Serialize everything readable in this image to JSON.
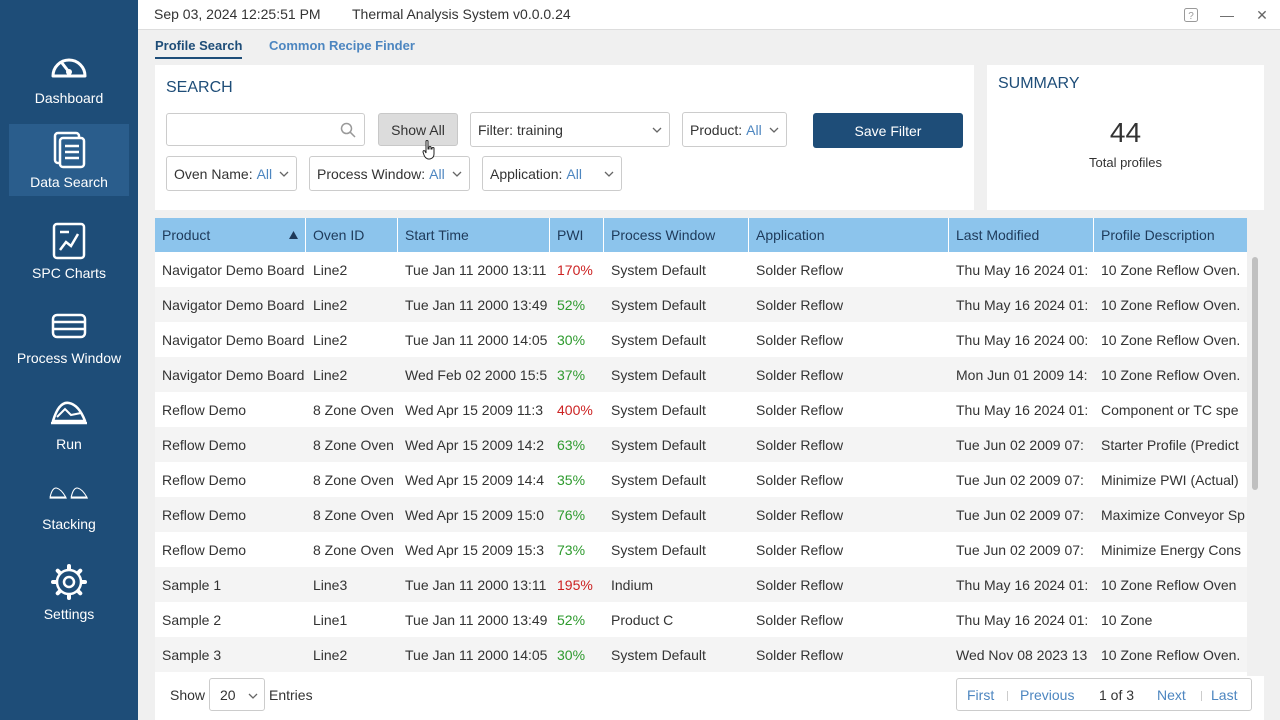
{
  "titlebar": {
    "datetime": "Sep 03, 2024 12:25:51 PM",
    "app_name": "Thermal Analysis System v0.0.0.24",
    "help_icon": "help-icon",
    "minimize_glyph": "—",
    "maximize_glyph": "▢",
    "close_glyph": "✕"
  },
  "sidebar": {
    "background_color": "#1e4d78",
    "items": [
      {
        "label": "Dashboard",
        "icon": "gauge-icon",
        "active": false
      },
      {
        "label": "Data Search",
        "icon": "documents-icon",
        "active": true
      },
      {
        "label": "SPC Charts",
        "icon": "spc-chart-icon",
        "active": false
      },
      {
        "label": "Process Window",
        "icon": "process-window-icon",
        "active": false
      },
      {
        "label": "Run",
        "icon": "run-icon",
        "active": false
      },
      {
        "label": "Stacking",
        "icon": "stacking-icon",
        "active": false
      },
      {
        "label": "Settings",
        "icon": "gear-icon",
        "active": false
      }
    ]
  },
  "tabs": [
    {
      "label": "Profile Search",
      "active": true
    },
    {
      "label": "Common Recipe Finder",
      "active": false
    }
  ],
  "search": {
    "title": "SEARCH",
    "input_value": "",
    "input_placeholder": "",
    "show_all_label": "Show All",
    "filter": {
      "label": "Filter:",
      "value": "training"
    },
    "product": {
      "label": "Product:",
      "value": "All"
    },
    "save_filter_label": "Save Filter",
    "oven_name": {
      "label": "Oven Name:",
      "value": "All"
    },
    "process_window": {
      "label": "Process Window:",
      "value": "All"
    },
    "application": {
      "label": "Application:",
      "value": "All"
    }
  },
  "summary": {
    "title": "SUMMARY",
    "count": "44",
    "caption": "Total profiles"
  },
  "table": {
    "header_color": "#8cc4ec",
    "sorted_column": "Product",
    "sort_direction": "ascending",
    "columns": [
      "Product",
      "Oven ID",
      "Start Time",
      "PWI",
      "Process Window",
      "Application",
      "Last Modified",
      "Profile Description"
    ],
    "rows": [
      {
        "product": "Navigator Demo Board",
        "oven": "Line2",
        "start": "Tue Jan 11 2000 13:11",
        "pwi": "170%",
        "pwi_status": "high",
        "window": "System Default",
        "application": "Solder Reflow",
        "modified": "Thu May 16 2024 01:",
        "description": "10 Zone Reflow Oven."
      },
      {
        "product": "Navigator Demo Board",
        "oven": "Line2",
        "start": "Tue Jan 11 2000 13:49",
        "pwi": "52%",
        "pwi_status": "ok",
        "window": "System Default",
        "application": "Solder Reflow",
        "modified": "Thu May 16 2024 01:",
        "description": "10 Zone Reflow Oven."
      },
      {
        "product": "Navigator Demo Board",
        "oven": "Line2",
        "start": "Tue Jan 11 2000 14:05",
        "pwi": "30%",
        "pwi_status": "ok",
        "window": "System Default",
        "application": "Solder Reflow",
        "modified": "Thu May 16 2024 00:",
        "description": "10 Zone Reflow Oven."
      },
      {
        "product": "Navigator Demo Board",
        "oven": "Line2",
        "start": "Wed Feb 02 2000 15:5",
        "pwi": "37%",
        "pwi_status": "ok",
        "window": "System Default",
        "application": "Solder Reflow",
        "modified": "Mon Jun 01 2009 14:",
        "description": "10 Zone Reflow Oven."
      },
      {
        "product": "Reflow Demo",
        "oven": "8 Zone Oven",
        "start": "Wed Apr 15 2009 11:3",
        "pwi": "400%",
        "pwi_status": "high",
        "window": "System Default",
        "application": "Solder Reflow",
        "modified": "Thu May 16 2024 01:",
        "description": "Component or TC spe"
      },
      {
        "product": "Reflow Demo",
        "oven": "8 Zone Oven",
        "start": "Wed Apr 15 2009 14:2",
        "pwi": "63%",
        "pwi_status": "ok",
        "window": "System Default",
        "application": "Solder Reflow",
        "modified": "Tue Jun 02 2009 07:",
        "description": "Starter Profile (Predict"
      },
      {
        "product": "Reflow Demo",
        "oven": "8 Zone Oven",
        "start": "Wed Apr 15 2009 14:4",
        "pwi": "35%",
        "pwi_status": "ok",
        "window": "System Default",
        "application": "Solder Reflow",
        "modified": "Tue Jun 02 2009 07:",
        "description": "Minimize PWI (Actual)"
      },
      {
        "product": "Reflow Demo",
        "oven": "8 Zone Oven",
        "start": "Wed Apr 15 2009 15:0",
        "pwi": "76%",
        "pwi_status": "ok",
        "window": "System Default",
        "application": "Solder Reflow",
        "modified": "Tue Jun 02 2009 07:",
        "description": "Maximize Conveyor Sp"
      },
      {
        "product": "Reflow Demo",
        "oven": "8 Zone Oven",
        "start": "Wed Apr 15 2009 15:3",
        "pwi": "73%",
        "pwi_status": "ok",
        "window": "System Default",
        "application": "Solder Reflow",
        "modified": "Tue Jun 02 2009 07:",
        "description": "Minimize Energy Cons"
      },
      {
        "product": "Sample 1",
        "oven": "Line3",
        "start": "Tue Jan 11 2000 13:11",
        "pwi": "195%",
        "pwi_status": "high",
        "window": "Indium",
        "application": "Solder Reflow",
        "modified": "Thu May 16 2024 01:",
        "description": "10 Zone Reflow Oven"
      },
      {
        "product": "Sample 2",
        "oven": "Line1",
        "start": "Tue Jan 11 2000 13:49",
        "pwi": "52%",
        "pwi_status": "ok",
        "window": "Product C",
        "application": "Solder Reflow",
        "modified": "Thu May 16 2024 01:",
        "description": "10 Zone"
      },
      {
        "product": "Sample 3",
        "oven": "Line2",
        "start": "Tue Jan 11 2000 14:05",
        "pwi": "30%",
        "pwi_status": "ok",
        "window": "System Default",
        "application": "Solder Reflow",
        "modified": "Wed Nov 08 2023 13",
        "description": "10 Zone Reflow Oven."
      }
    ]
  },
  "footer": {
    "show_label": "Show",
    "entries_value": "20",
    "entries_label": "Entries",
    "first_label": "First",
    "previous_label": "Previous",
    "page_info": "1 of 3",
    "next_label": "Next",
    "last_label": "Last"
  },
  "colors": {
    "accent": "#1e4d78",
    "link": "#4d86c0",
    "pwi_high": "#cc2222",
    "pwi_ok": "#2d9a2d"
  }
}
